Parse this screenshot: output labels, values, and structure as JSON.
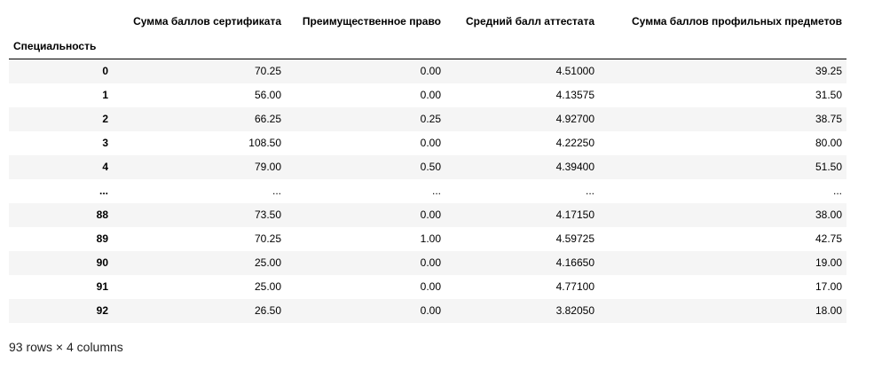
{
  "dataframe": {
    "index_name": "Специальность",
    "columns": [
      "Сумма баллов сертификата",
      "Преимущественное право",
      "Средний балл аттестата",
      "Сумма баллов профильных предметов"
    ],
    "rows": [
      {
        "index": "0",
        "values": [
          "70.25",
          "0.00",
          "4.51000",
          "39.25"
        ]
      },
      {
        "index": "1",
        "values": [
          "56.00",
          "0.00",
          "4.13575",
          "31.50"
        ]
      },
      {
        "index": "2",
        "values": [
          "66.25",
          "0.25",
          "4.92700",
          "38.75"
        ]
      },
      {
        "index": "3",
        "values": [
          "108.50",
          "0.00",
          "4.22250",
          "80.00"
        ]
      },
      {
        "index": "4",
        "values": [
          "79.00",
          "0.50",
          "4.39400",
          "51.50"
        ]
      },
      {
        "index": "...",
        "values": [
          "...",
          "...",
          "...",
          "..."
        ]
      },
      {
        "index": "88",
        "values": [
          "73.50",
          "0.00",
          "4.17150",
          "38.00"
        ]
      },
      {
        "index": "89",
        "values": [
          "70.25",
          "1.00",
          "4.59725",
          "42.75"
        ]
      },
      {
        "index": "90",
        "values": [
          "25.00",
          "0.00",
          "4.16650",
          "19.00"
        ]
      },
      {
        "index": "91",
        "values": [
          "25.00",
          "0.00",
          "4.77100",
          "17.00"
        ]
      },
      {
        "index": "92",
        "values": [
          "26.50",
          "0.00",
          "3.82050",
          "18.00"
        ]
      }
    ],
    "shape_text": "93 rows × 4 columns"
  },
  "colors": {
    "stripe": "#f5f5f5",
    "header_rule": "#000000"
  }
}
